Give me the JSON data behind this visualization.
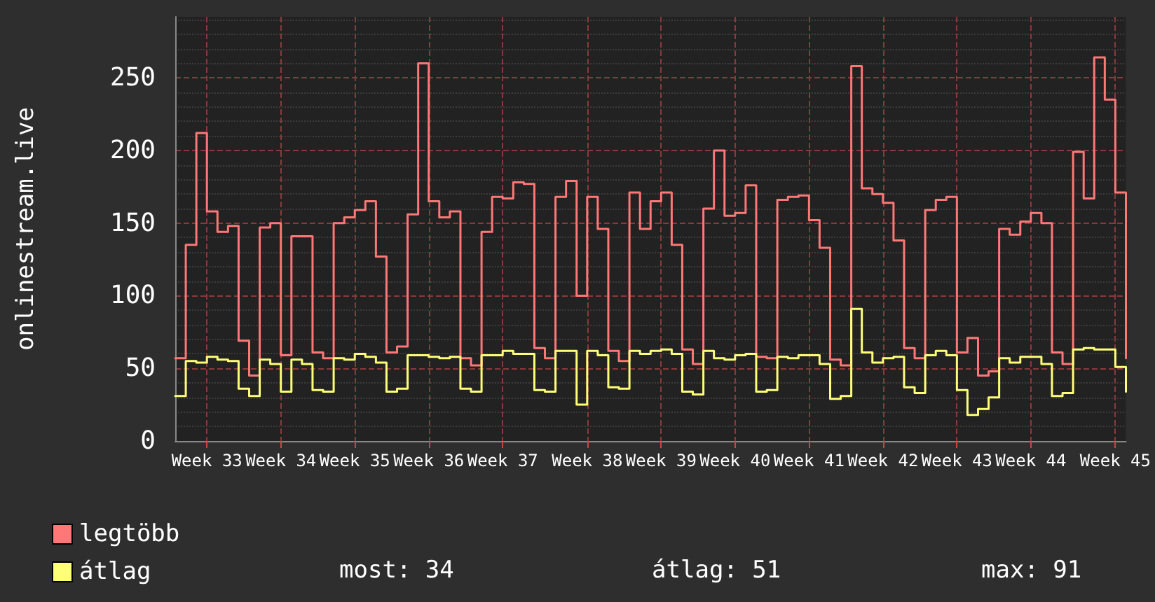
{
  "chart_data": {
    "type": "step",
    "ylabel": "onlinestream.live",
    "categories": [
      null,
      null,
      null,
      "Week 33",
      null,
      null,
      null,
      null,
      null,
      null,
      "Week 34",
      null,
      null,
      null,
      null,
      null,
      null,
      "Week 35",
      null,
      null,
      null,
      null,
      null,
      null,
      "Week 36",
      null,
      null,
      null,
      null,
      null,
      null,
      "Week 37",
      null,
      null,
      null,
      null,
      null,
      null,
      null,
      "Week 38",
      null,
      null,
      null,
      null,
      null,
      null,
      "Week 39",
      null,
      null,
      null,
      null,
      null,
      null,
      "Week 40",
      null,
      null,
      null,
      null,
      null,
      null,
      "Week 41",
      null,
      null,
      null,
      null,
      null,
      null,
      "Week 42",
      null,
      null,
      null,
      null,
      null,
      null,
      "Week 43",
      null,
      null,
      null,
      null,
      null,
      null,
      "Week 44",
      null,
      null,
      null,
      null,
      null,
      null,
      null,
      "Week 45",
      null
    ],
    "series": [
      {
        "name": "legtöbb",
        "color": "#ff7777",
        "values": [
          57,
          135,
          212,
          158,
          144,
          148,
          69,
          45,
          147,
          150,
          59,
          141,
          141,
          61,
          57,
          150,
          154,
          159,
          165,
          127,
          61,
          65,
          156,
          260,
          165,
          154,
          158,
          57,
          52,
          144,
          168,
          167,
          178,
          177,
          64,
          57,
          168,
          179,
          100,
          168,
          146,
          62,
          55,
          171,
          146,
          165,
          171,
          135,
          63,
          53,
          160,
          200,
          155,
          157,
          176,
          58,
          57,
          166,
          168,
          169,
          152,
          133,
          56,
          52,
          258,
          174,
          170,
          164,
          138,
          64,
          57,
          159,
          166,
          168,
          61,
          71,
          45,
          48,
          146,
          142,
          151,
          157,
          150,
          61,
          53,
          199,
          167,
          264,
          235,
          171,
          57
        ]
      },
      {
        "name": "átlag",
        "color": "#ffff77",
        "values": [
          31,
          55,
          54,
          58,
          56,
          55,
          36,
          31,
          56,
          53,
          34,
          56,
          53,
          35,
          34,
          57,
          56,
          60,
          58,
          54,
          34,
          36,
          59,
          59,
          58,
          57,
          58,
          36,
          34,
          59,
          59,
          62,
          60,
          60,
          35,
          34,
          62,
          62,
          25,
          62,
          59,
          37,
          36,
          62,
          60,
          62,
          63,
          60,
          34,
          32,
          62,
          57,
          56,
          59,
          60,
          34,
          35,
          58,
          57,
          59,
          59,
          53,
          29,
          31,
          91,
          61,
          54,
          57,
          58,
          37,
          33,
          59,
          62,
          59,
          35,
          18,
          22,
          30,
          57,
          54,
          58,
          58,
          53,
          31,
          33,
          63,
          64,
          63,
          63,
          51,
          34
        ]
      }
    ],
    "ylim": [
      0,
      292
    ],
    "yticks": [
      0,
      50,
      100,
      150,
      200,
      250
    ],
    "grid": true,
    "legend": "bottom left",
    "marker": "none",
    "line_style": "solid",
    "annotations": [
      "most: 34",
      "átlag: 51",
      "max: 91"
    ]
  }
}
